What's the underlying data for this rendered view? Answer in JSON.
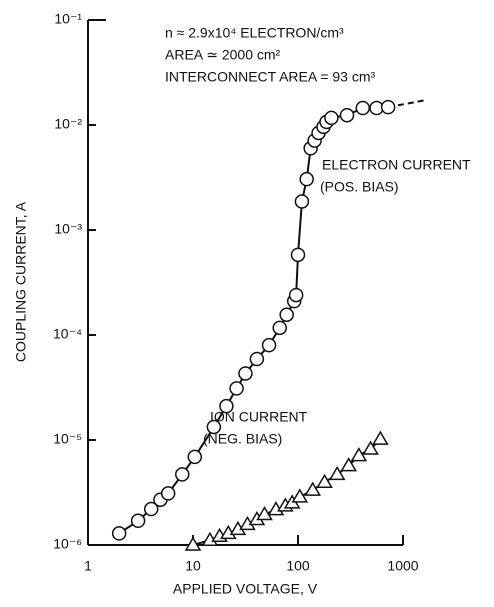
{
  "chart_data": {
    "type": "line",
    "x_label": "APPLIED VOLTAGE, V",
    "y_label": "COUPLING CURRENT, A",
    "annotations": [
      "n ≈ 2.9x10⁴ ELECTRON/cm³",
      "AREA ≃ 2000 cm²",
      "INTERCONNECT AREA = 93 cm³",
      "(POS. BIAS)",
      "(NEG. BIAS)"
    ],
    "xscale": "log",
    "yscale": "log",
    "xlim": [
      1,
      1000
    ],
    "ylim": [
      1e-06,
      0.1
    ],
    "xticks": [
      1,
      10,
      100,
      1000
    ],
    "yticks": [
      {
        "value": 1e-06,
        "label": "10⁻⁶"
      },
      {
        "value": 1e-05,
        "label": "10⁻⁵"
      },
      {
        "value": 0.0001,
        "label": "10⁻⁴"
      },
      {
        "value": 0.001,
        "label": "10⁻³"
      },
      {
        "value": 0.01,
        "label": "10⁻²"
      },
      {
        "value": 0.1,
        "label": "10⁻¹"
      }
    ],
    "series": [
      {
        "name": "ELECTRON CURRENT",
        "color": "#111111",
        "marker": "circle",
        "x": [
          1.98,
          3.0,
          4.0,
          4.9,
          5.8,
          7.9,
          10.4,
          15.8,
          20.8,
          26,
          31.6,
          40.6,
          53,
          67,
          78,
          92,
          96,
          100,
          109,
          121,
          132,
          144,
          157,
          175,
          187,
          208,
          293,
          414,
          560,
          722
        ],
        "values": [
          1.29e-06,
          1.7e-06,
          2.2e-06,
          2.7e-06,
          3.1e-06,
          4.7e-06,
          6.9e-06,
          1.33e-05,
          2.1e-05,
          3.1e-05,
          4.3e-05,
          5.9e-05,
          8e-05,
          0.000117,
          0.000156,
          0.00021,
          0.00024,
          0.00058,
          0.00187,
          0.00305,
          0.006,
          0.0071,
          0.0084,
          0.0096,
          0.0107,
          0.0117,
          0.0124,
          0.0145,
          0.0145,
          0.0148
        ]
      },
      {
        "name": "ION CURRENT",
        "color": "#111111",
        "marker": "triangle",
        "x": [
          10,
          14.5,
          17.9,
          21.7,
          26.8,
          33,
          40.6,
          48,
          61.6,
          75.7,
          88,
          104,
          138,
          179,
          236,
          304,
          380,
          491,
          609
        ],
        "values": [
          1e-06,
          1.11e-06,
          1.21e-06,
          1.29e-06,
          1.41e-06,
          1.57e-06,
          1.75e-06,
          1.95e-06,
          2.17e-06,
          2.36e-06,
          2.52e-06,
          2.87e-06,
          3.33e-06,
          3.96e-06,
          4.7e-06,
          5.7e-06,
          7.1e-06,
          8.2e-06,
          1.02e-05
        ]
      }
    ]
  }
}
